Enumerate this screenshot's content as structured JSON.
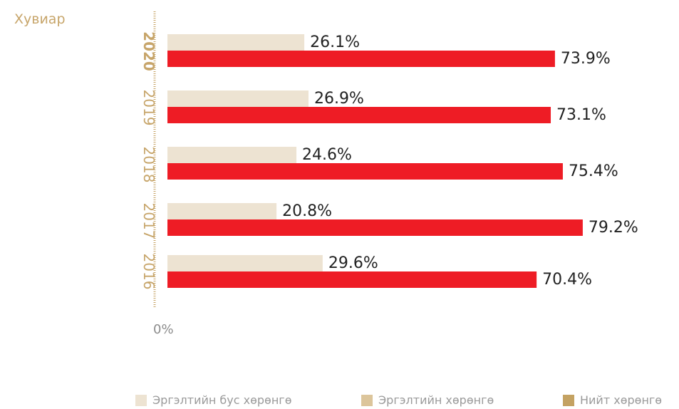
{
  "unit_label": "Хувиар",
  "colors": {
    "noncurrent": "#ede3d2",
    "current_bar": "#ee1c25",
    "current_legend": "#dcc59b",
    "total": "#c4a262",
    "year_text": "#c7a56a",
    "axis": "#c7a56a",
    "value_text": "#222222"
  },
  "legend": [
    {
      "label": "Эргэлтийн бус хөрөнгө",
      "color": "#ede3d2"
    },
    {
      "label": "Эргэлтийн хөрөнгө",
      "color": "#dcc59b"
    },
    {
      "label": "Нийт хөрөнгө",
      "color": "#c4a262"
    }
  ],
  "chart_data": {
    "type": "bar",
    "orientation": "horizontal",
    "categories": [
      "2020",
      "2019",
      "2018",
      "2017",
      "2016"
    ],
    "highlight_category": "2020",
    "series": [
      {
        "name": "Эргэлтийн бус хөрөнгө",
        "values": [
          26.1,
          26.9,
          24.6,
          20.8,
          29.6
        ],
        "labels": [
          "26.1%",
          "26.9%",
          "24.6%",
          "20.8%",
          "29.6%"
        ]
      },
      {
        "name": "Эргэлтийн хөрөнгө",
        "values": [
          73.9,
          73.1,
          75.4,
          79.2,
          70.4
        ],
        "labels": [
          "73.9%",
          "73.1%",
          "75.4%",
          "79.2%",
          "70.4%"
        ]
      }
    ],
    "xlim": [
      0,
      100
    ],
    "x_tick_label": "0%",
    "grid": false,
    "legend_position": "bottom"
  }
}
